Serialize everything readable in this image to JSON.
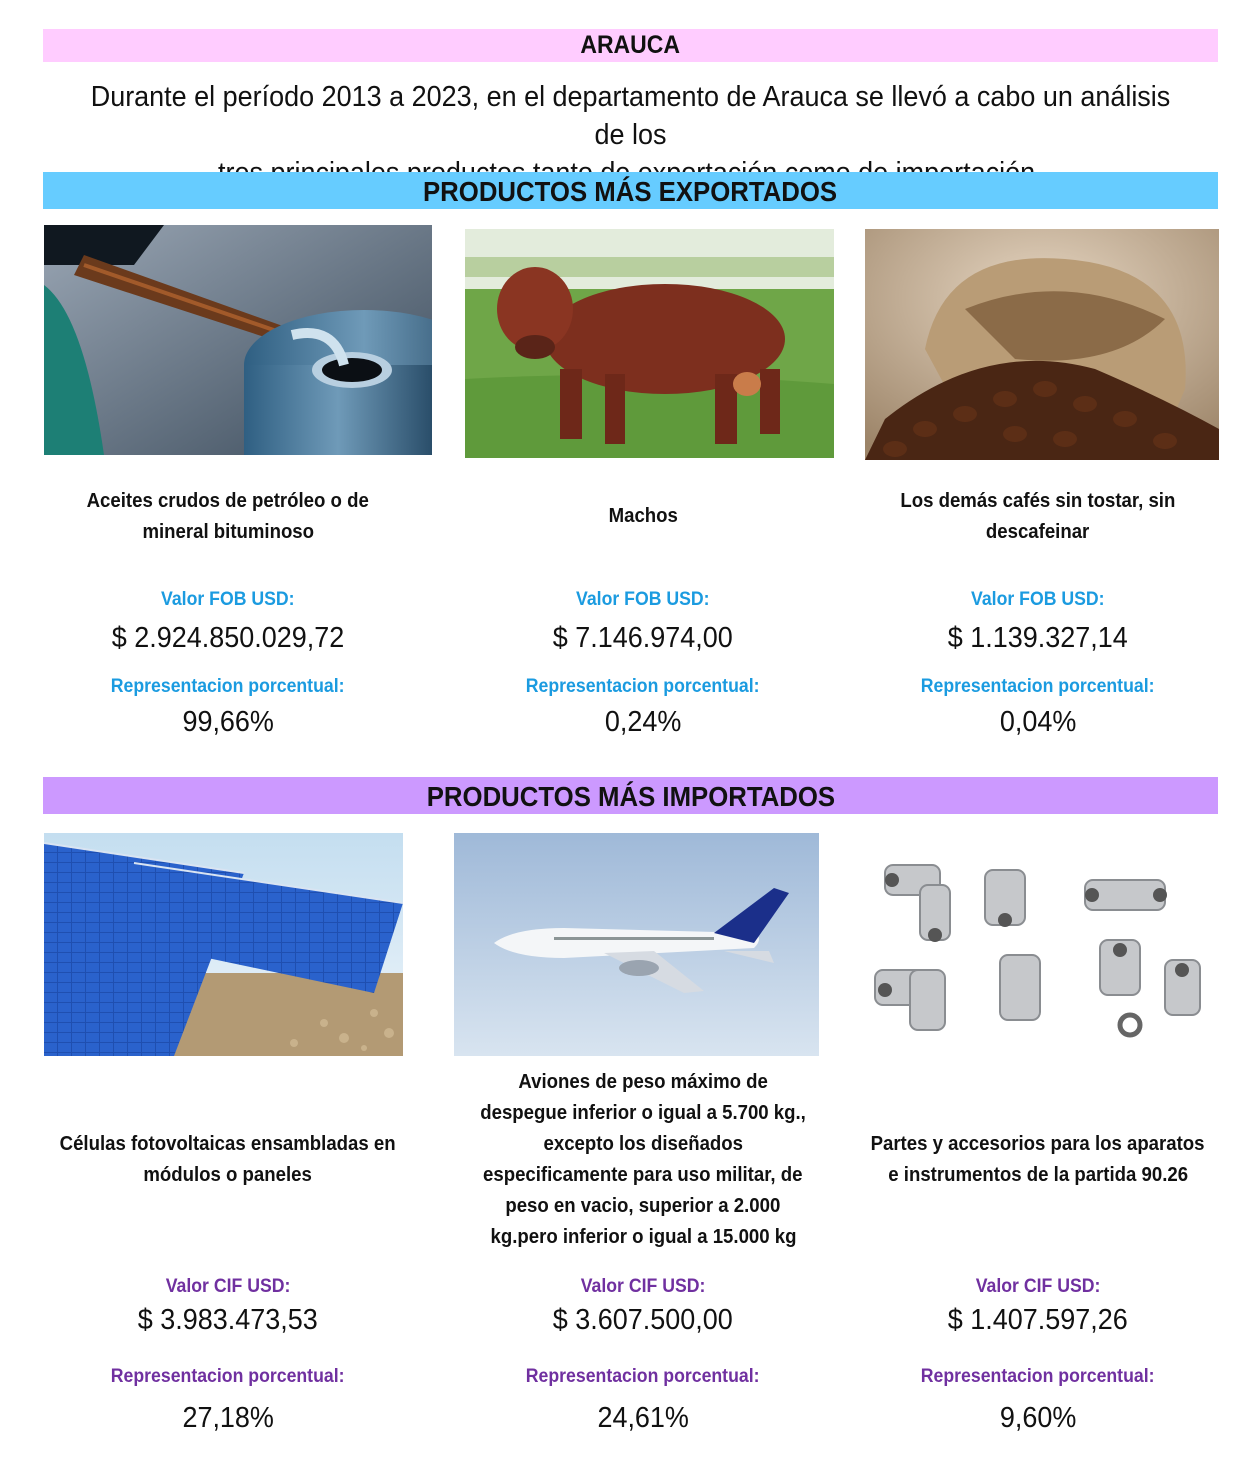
{
  "header": {
    "title": "ARAUCA",
    "intro_line1": "Durante el período 2013 a 2023, en el departamento de Arauca se llevó a cabo un análisis de los",
    "intro_line2": "tres principales productos tanto de exportación como de importación."
  },
  "exports": {
    "heading": "PRODUCTOS MÁS EXPORTADOS",
    "items": [
      {
        "image": "oil-barrel-image",
        "name_line1": "Aceites crudos de petróleo o de",
        "name_line2": "mineral bituminoso",
        "value_label": "Valor FOB USD:",
        "value": "$ 2.924.850.029,72",
        "share_label": "Representacion porcentual:",
        "share": "99,66%"
      },
      {
        "image": "bull-image",
        "name_line1": "Machos",
        "name_line2": "",
        "value_label": "Valor FOB USD:",
        "value": "$ 7.146.974,00",
        "share_label": "Representacion porcentual:",
        "share": "0,24%"
      },
      {
        "image": "coffee-sack-image",
        "name_line1": "Los demás cafés sin tostar, sin",
        "name_line2": "descafeinar",
        "value_label": "Valor FOB USD:",
        "value": "$ 1.139.327,14",
        "share_label": "Representacion porcentual:",
        "share": "0,04%"
      }
    ]
  },
  "imports": {
    "heading": "PRODUCTOS MÁS IMPORTADOS",
    "items": [
      {
        "image": "solar-panels-image",
        "name_lines": [
          "Células fotovoltaicas ensambladas en",
          "módulos o paneles"
        ],
        "value_label": "Valor CIF USD:",
        "value": "$ 3.983.473,53",
        "share_label": "Representacion porcentual:",
        "share": "27,18%"
      },
      {
        "image": "airplane-image",
        "name_lines": [
          "Aviones de peso máximo de",
          "despegue inferior o igual a 5.700 kg.,",
          "excepto los diseñados",
          "especificamente para  uso militar, de",
          "peso en vacio, superior a 2.000",
          "kg.pero inferior o igual a 15.000 kg"
        ],
        "value_label": "Valor CIF USD:",
        "value": "$ 3.607.500,00",
        "share_label": "Representacion porcentual:",
        "share": "24,61%"
      },
      {
        "image": "pipe-fittings-image",
        "name_lines": [
          "Partes y accesorios para los aparatos",
          "e instrumentos de la partida 90.26"
        ],
        "value_label": "Valor CIF USD:",
        "value": "$ 1.407.597,26",
        "share_label": "Representacion porcentual:",
        "share": "9,60%"
      }
    ]
  }
}
